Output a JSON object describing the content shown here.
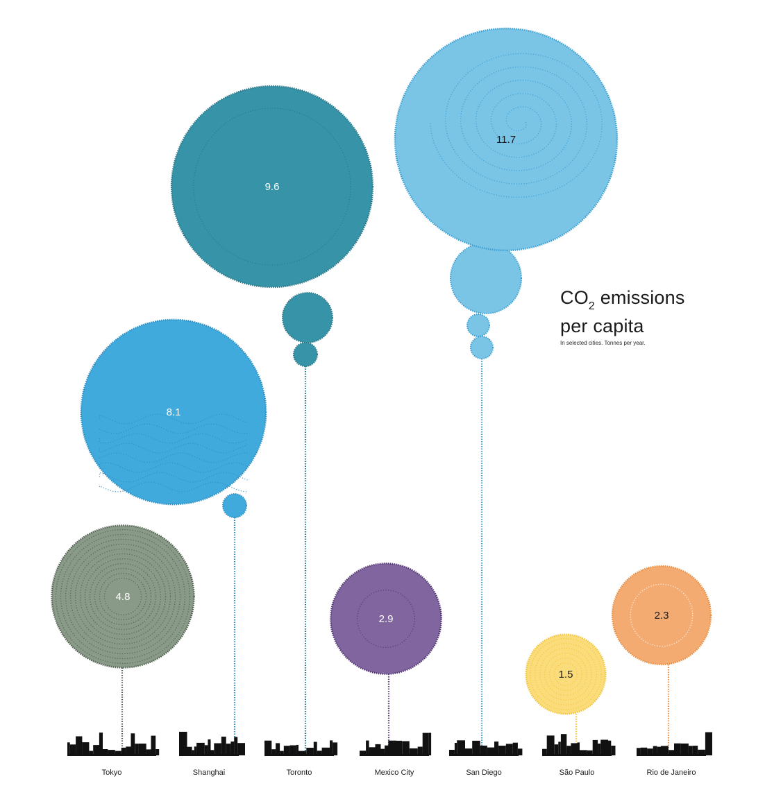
{
  "chart_data": {
    "type": "bubble",
    "title_prefix": "CO",
    "title_subscript": "2",
    "title_suffix": " emissions",
    "title_line2": "per capita",
    "subtitle": "In selected cities. Tonnes per year.",
    "units": "Tonnes per year",
    "cities": [
      {
        "name": "Tokyo",
        "value": 4.8,
        "label": "4.8",
        "color": "#8a9a88",
        "stroke": "#4f5e4e",
        "text_color": "#ffffff"
      },
      {
        "name": "Shanghai",
        "value": 8.1,
        "label": "8.1",
        "color": "#40aadc",
        "stroke": "#2e8fc4",
        "text_color": "#ffffff"
      },
      {
        "name": "Toronto",
        "value": 9.6,
        "label": "9.6",
        "color": "#3794a8",
        "stroke": "#2a7789",
        "text_color": "#ffffff"
      },
      {
        "name": "Mexico City",
        "value": 2.9,
        "label": "2.9",
        "color": "#80659e",
        "stroke": "#533775",
        "text_color": "#ffffff"
      },
      {
        "name": "San Diego",
        "value": 11.7,
        "label": "11.7",
        "color": "#7ac4e6",
        "stroke": "#3a9fd4",
        "text_color": "#1a1a1a"
      },
      {
        "name": "São Paulo",
        "value": 1.5,
        "label": "1.5",
        "color": "#fbdc7a",
        "stroke": "#f2c43a",
        "text_color": "#1a1a1a"
      },
      {
        "name": "Rio de Janeiro",
        "value": 2.3,
        "label": "2.3",
        "color": "#f3ab72",
        "stroke": "#ea8f42",
        "text_color": "#1a1a1a"
      }
    ]
  }
}
